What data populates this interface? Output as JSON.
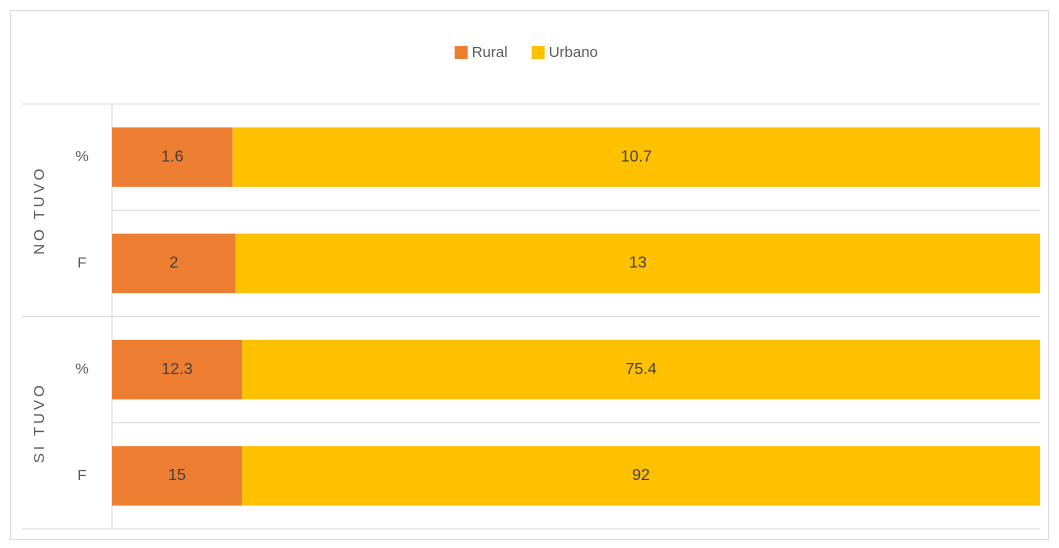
{
  "chart_data": {
    "type": "bar",
    "orientation": "horizontal",
    "stacked": "percent",
    "groups": [
      {
        "name": "NO TUVO",
        "categories": [
          "%",
          "F"
        ]
      },
      {
        "name": "SI TUVO",
        "categories": [
          "%",
          "F"
        ]
      }
    ],
    "series": [
      {
        "name": "Rural",
        "color": "#ed7d31",
        "values": [
          1.6,
          2,
          12.3,
          15
        ]
      },
      {
        "name": "Urbano",
        "color": "#ffc000",
        "values": [
          10.7,
          13,
          75.4,
          92
        ]
      }
    ],
    "legend": "top"
  }
}
